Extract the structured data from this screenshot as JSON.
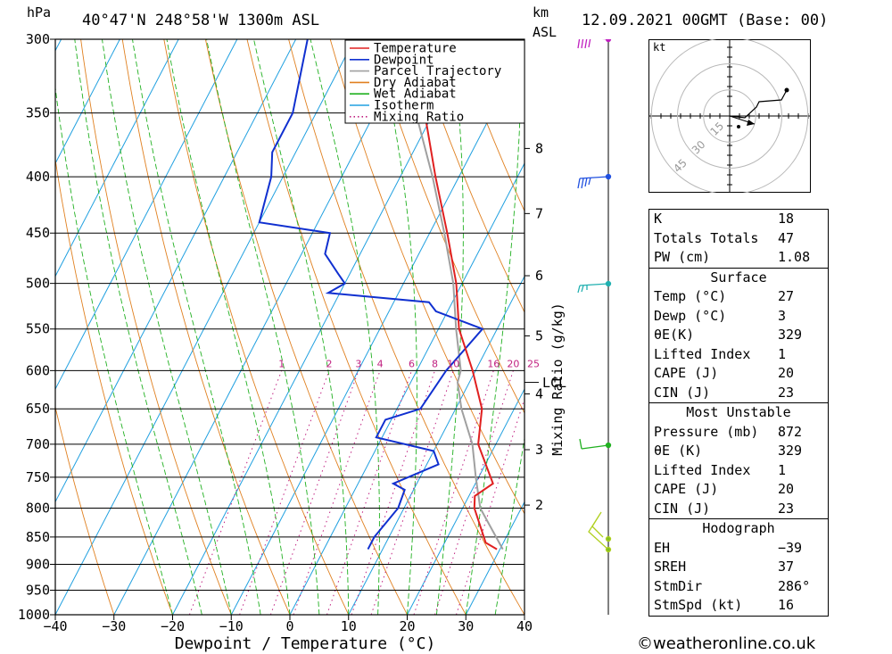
{
  "header": {
    "pressure_unit": "hPa",
    "location": "40°47'N  248°58'W  1300m  ASL",
    "km_label": "km",
    "asl_label": "ASL",
    "date": "12.09.2021  00GMT  (Base: 00)"
  },
  "chart_data": {
    "type": "skew-t",
    "xlabel": "Dewpoint / Temperature (°C)",
    "ylabel": "hPa",
    "right_label": "Mixing Ratio (g/kg)",
    "xlim": [
      -40,
      40
    ],
    "ylim": [
      1000,
      300
    ],
    "x_ticks": [
      -40,
      -30,
      -20,
      -10,
      0,
      10,
      20,
      30,
      40
    ],
    "x_tick_labels": [
      "−40",
      "−30",
      "−20",
      "−10",
      "0",
      "10",
      "20",
      "30",
      "40"
    ],
    "pressure_levels": [
      300,
      350,
      400,
      450,
      500,
      550,
      600,
      650,
      700,
      750,
      800,
      850,
      900,
      950,
      1000
    ],
    "km_ticks": [
      {
        "km": 2,
        "p": 795
      },
      {
        "km": 3,
        "p": 708
      },
      {
        "km": 4,
        "p": 630
      },
      {
        "km": 5,
        "p": 558
      },
      {
        "km": 6,
        "p": 492
      },
      {
        "km": 7,
        "p": 432
      },
      {
        "km": 8,
        "p": 377
      }
    ],
    "lcl_label": "LCL",
    "lcl_pressure": 615,
    "mixing_ratio_labels": [
      "1",
      "2",
      "3",
      "4",
      "6",
      "8",
      "10",
      "16",
      "20",
      "25"
    ],
    "mixing_ratio_values": [
      1,
      2,
      3,
      4,
      6,
      8,
      10,
      16,
      20,
      25
    ],
    "legend": [
      {
        "name": "Temperature",
        "color": "#e02020",
        "style": "solid"
      },
      {
        "name": "Dewpoint",
        "color": "#1030d0",
        "style": "solid"
      },
      {
        "name": "Parcel Trajectory",
        "color": "#a0a0a0",
        "style": "solid"
      },
      {
        "name": "Dry Adiabat",
        "color": "#e08020",
        "style": "solid"
      },
      {
        "name": "Wet Adiabat",
        "color": "#20b020",
        "style": "solid"
      },
      {
        "name": "Isotherm",
        "color": "#20a0e0",
        "style": "solid"
      },
      {
        "name": "Mixing Ratio",
        "color": "#c02080",
        "style": "dotted"
      }
    ],
    "series": [
      {
        "name": "Temperature",
        "color": "#e02020",
        "points": [
          [
            872,
            29.5
          ],
          [
            860,
            27
          ],
          [
            800,
            22
          ],
          [
            780,
            21
          ],
          [
            760,
            23
          ],
          [
            700,
            17
          ],
          [
            650,
            14.5
          ],
          [
            600,
            9.5
          ],
          [
            550,
            3.5
          ],
          [
            500,
            -1
          ],
          [
            450,
            -7
          ],
          [
            400,
            -14
          ],
          [
            350,
            -21.5
          ],
          [
            300,
            -31
          ]
        ]
      },
      {
        "name": "Dewpoint",
        "color": "#1030d0",
        "points": [
          [
            872,
            7.5
          ],
          [
            850,
            7.5
          ],
          [
            800,
            9
          ],
          [
            770,
            8.5
          ],
          [
            760,
            6
          ],
          [
            730,
            12
          ],
          [
            710,
            10
          ],
          [
            690,
            -1
          ],
          [
            665,
            -1
          ],
          [
            650,
            4
          ],
          [
            600,
            5
          ],
          [
            550,
            7.5
          ],
          [
            530,
            -2
          ],
          [
            520,
            -4
          ],
          [
            510,
            -22
          ],
          [
            500,
            -20
          ],
          [
            490,
            -22
          ],
          [
            470,
            -26
          ],
          [
            450,
            -27
          ],
          [
            440,
            -40
          ],
          [
            400,
            -42
          ],
          [
            380,
            -44
          ],
          [
            350,
            -44
          ],
          [
            300,
            -48
          ]
        ]
      },
      {
        "name": "Parcel Trajectory",
        "color": "#a0a0a0",
        "points": [
          [
            872,
            30.5
          ],
          [
            800,
            23
          ],
          [
            750,
            19.5
          ],
          [
            700,
            16
          ],
          [
            650,
            11
          ],
          [
            615,
            8
          ],
          [
            600,
            7.5
          ],
          [
            550,
            3
          ],
          [
            500,
            -1.5
          ],
          [
            450,
            -7.5
          ],
          [
            400,
            -14.5
          ],
          [
            350,
            -23
          ],
          [
            300,
            -34
          ]
        ]
      }
    ]
  },
  "hodograph": {
    "unit": "kt",
    "ring_labels": [
      "15",
      "30",
      "45"
    ],
    "ring_values": [
      15,
      30,
      45
    ]
  },
  "indices": {
    "rows": [
      {
        "label": "K",
        "value": "18"
      },
      {
        "label": "Totals Totals",
        "value": "47"
      },
      {
        "label": "PW (cm)",
        "value": "1.08"
      }
    ]
  },
  "surface": {
    "title": "Surface",
    "rows": [
      {
        "label": "Temp (°C)",
        "value": "27"
      },
      {
        "label": "Dewp (°C)",
        "value": "3"
      },
      {
        "label": "θE(K)",
        "value": "329"
      },
      {
        "label": "Lifted Index",
        "value": "1"
      },
      {
        "label": "CAPE (J)",
        "value": "20"
      },
      {
        "label": "CIN (J)",
        "value": "23"
      }
    ]
  },
  "most_unstable": {
    "title": "Most Unstable",
    "rows": [
      {
        "label": "Pressure (mb)",
        "value": "872"
      },
      {
        "label": "θE (K)",
        "value": "329"
      },
      {
        "label": "Lifted Index",
        "value": "1"
      },
      {
        "label": "CAPE (J)",
        "value": "20"
      },
      {
        "label": "CIN (J)",
        "value": "23"
      }
    ]
  },
  "hodograph_stats": {
    "title": "Hodograph",
    "rows": [
      {
        "label": "EH",
        "value": "−39"
      },
      {
        "label": "SREH",
        "value": "37"
      },
      {
        "label": "StmDir",
        "value": "286°"
      },
      {
        "label": "StmSpd (kt)",
        "value": "16"
      }
    ]
  },
  "credit": "©weatheronline.co.uk"
}
